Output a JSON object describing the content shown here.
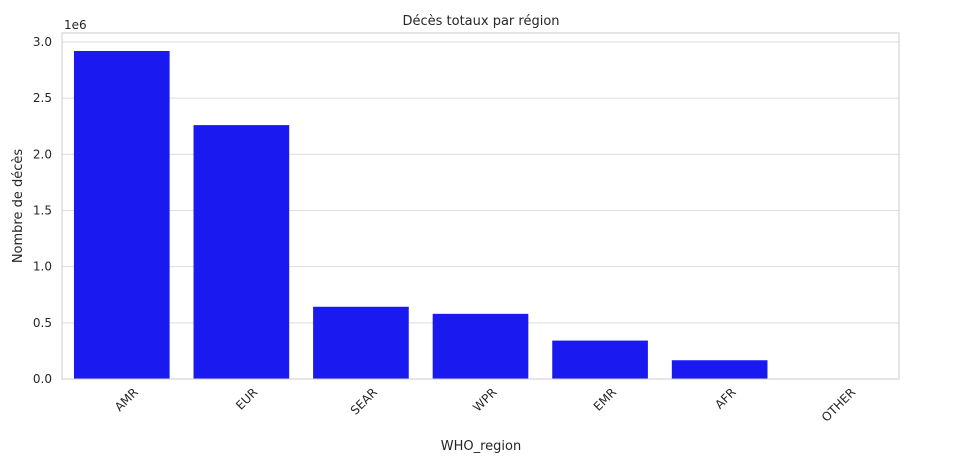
{
  "chart_data": {
    "type": "bar",
    "title": "Décès totaux par région",
    "xlabel": "WHO_region",
    "ylabel": "Nombre de décès",
    "offset_label": "1e6",
    "categories": [
      "AMR",
      "EUR",
      "SEAR",
      "WPR",
      "EMR",
      "AFR",
      "OTHER"
    ],
    "values": [
      2920000,
      2260000,
      643000,
      580000,
      342000,
      167000,
      0
    ],
    "ylim": [
      0,
      3080000
    ],
    "yticks": [
      0,
      500000,
      1000000,
      1500000,
      2000000,
      2500000,
      3000000
    ],
    "ytick_labels": [
      "0.0",
      "0.5",
      "1.0",
      "1.5",
      "2.0",
      "2.5",
      "3.0"
    ],
    "grid": true,
    "bar_color": "#1a1af0",
    "x_tick_rotation_deg": 45
  }
}
